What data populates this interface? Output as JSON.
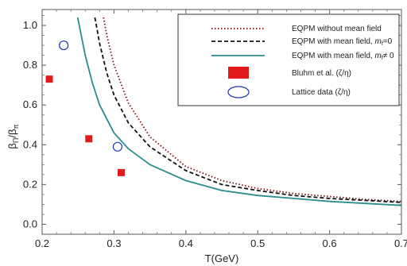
{
  "chart_data": {
    "type": "line",
    "title": "",
    "xlabel": "T(GeV)",
    "ylabel": {
      "main": "β",
      "sub1": "Π",
      "slash": "/β",
      "sub2": "π"
    },
    "xlim": [
      0.2,
      0.7
    ],
    "ylim": [
      -0.05,
      1.08
    ],
    "xticks": [
      0.2,
      0.3,
      0.4,
      0.5,
      0.6,
      0.7
    ],
    "xtick_labels": [
      "0.2",
      "0.3",
      "0.4",
      "0.5",
      "0.6",
      "0.7"
    ],
    "yticks": [
      0.0,
      0.2,
      0.4,
      0.6,
      0.8,
      1.0
    ],
    "ytick_labels": [
      "0.0",
      "0.2",
      "0.4",
      "0.6",
      "0.8",
      "1.0"
    ],
    "grid": false,
    "legend_position": "top-right",
    "series": [
      {
        "name": "EQPM without mean field",
        "style": "dotted",
        "color": "#7a1010",
        "x": [
          0.2855,
          0.29,
          0.3,
          0.32,
          0.35,
          0.4,
          0.45,
          0.5,
          0.55,
          0.6,
          0.65,
          0.7
        ],
        "y": [
          1.04,
          0.95,
          0.8,
          0.61,
          0.44,
          0.29,
          0.22,
          0.18,
          0.155,
          0.14,
          0.125,
          0.115
        ]
      },
      {
        "name_parts": [
          "EQPM with mean field, ",
          "m",
          "f",
          "=0"
        ],
        "style": "dashed",
        "color": "#111111",
        "x": [
          0.2735,
          0.28,
          0.29,
          0.3,
          0.32,
          0.35,
          0.4,
          0.45,
          0.5,
          0.55,
          0.6,
          0.65,
          0.7
        ],
        "y": [
          1.04,
          0.91,
          0.76,
          0.65,
          0.51,
          0.39,
          0.27,
          0.2,
          0.17,
          0.145,
          0.13,
          0.12,
          0.11
        ]
      },
      {
        "name_parts": [
          "EQPM with mean field, ",
          "m",
          "f",
          "≠ 0"
        ],
        "style": "solid",
        "color": "#2a8c8c",
        "x": [
          0.2495,
          0.26,
          0.27,
          0.28,
          0.3,
          0.32,
          0.35,
          0.4,
          0.45,
          0.5,
          0.55,
          0.6,
          0.65,
          0.7
        ],
        "y": [
          1.04,
          0.85,
          0.71,
          0.6,
          0.46,
          0.38,
          0.3,
          0.22,
          0.17,
          0.145,
          0.13,
          0.115,
          0.105,
          0.095
        ]
      }
    ],
    "markers": [
      {
        "name": "Bluhm et al. (ζ/η)",
        "shape": "square",
        "color": "#e31a1a",
        "x": [
          0.21,
          0.265,
          0.31
        ],
        "y": [
          0.73,
          0.43,
          0.26
        ]
      },
      {
        "name": "Lattice data  (ζ/η)",
        "shape": "circle-open",
        "color": "#2233bb",
        "x": [
          0.23,
          0.305
        ],
        "y": [
          0.9,
          0.39
        ]
      }
    ]
  }
}
